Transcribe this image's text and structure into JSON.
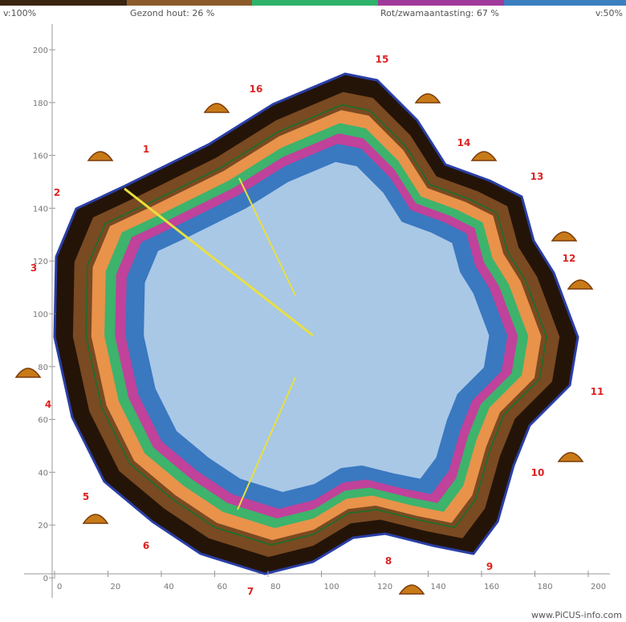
{
  "legend": {
    "items": [
      "v:100%",
      "Gezond hout: 26 %",
      "Rot/zwamaantasting: 67 %",
      "v:50%"
    ]
  },
  "axes": {
    "xticks": [
      0,
      20,
      40,
      60,
      80,
      100,
      120,
      140,
      160,
      180,
      200
    ],
    "yticks": [
      0,
      20,
      40,
      60,
      80,
      100,
      120,
      140,
      160,
      180,
      200
    ]
  },
  "sensors": [
    "1",
    "2",
    "3",
    "4",
    "5",
    "6",
    "7",
    "8",
    "9",
    "10",
    "11",
    "12",
    "13",
    "14",
    "15",
    "16"
  ],
  "footer": "www.PiCUS-info.com"
}
